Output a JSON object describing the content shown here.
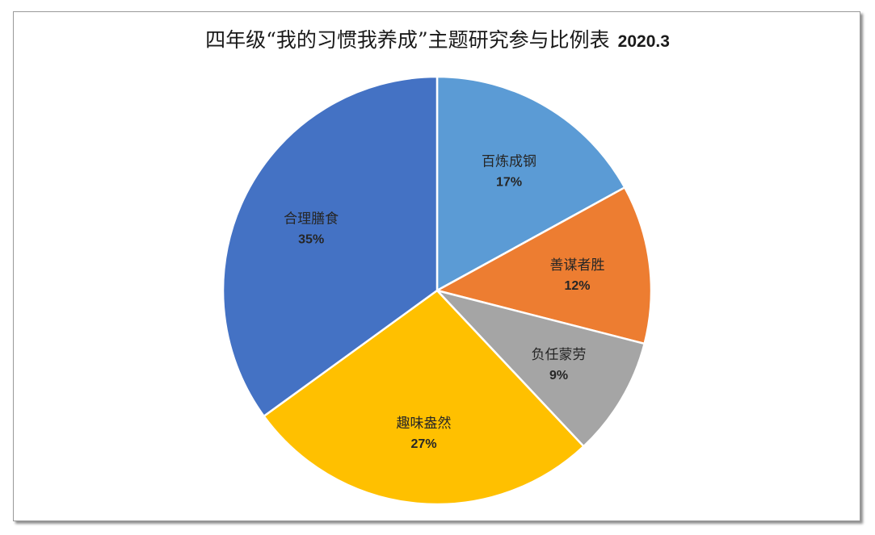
{
  "chart_data": {
    "type": "pie",
    "title": "四年级“我的习惯我养成”主题研究参与比例表",
    "subtitle": "2020.3",
    "categories": [
      "百炼成钢",
      "善谋者胜",
      "负任蒙劳",
      "趣味盎然",
      "合理膳食"
    ],
    "values": [
      17,
      12,
      9,
      27,
      35
    ],
    "value_labels": [
      "17%",
      "12%",
      "9%",
      "27%",
      "35%"
    ],
    "colors": [
      "#5B9BD5",
      "#ED7D31",
      "#A5A5A5",
      "#FFC000",
      "#4472C4"
    ],
    "start_angle": "12 o'clock",
    "direction": "clockwise",
    "legend": "none",
    "data_labels": "inside"
  }
}
